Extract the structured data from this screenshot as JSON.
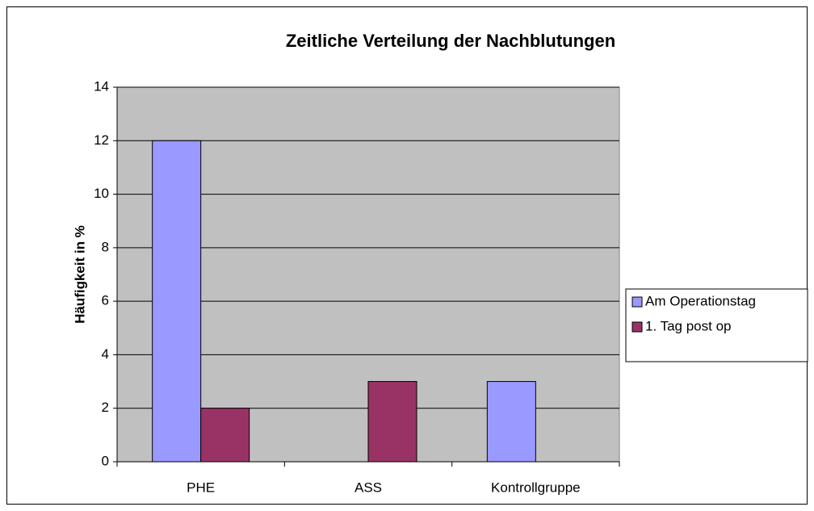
{
  "chart_data": {
    "type": "bar",
    "title": "Zeitliche Verteilung der Nachblutungen",
    "y_label": "Häufigkeit in %",
    "categories": [
      "PHE",
      "ASS",
      "Kontrollgruppe"
    ],
    "series": [
      {
        "name": "Am Operationstag",
        "color": "#9999ff",
        "values": [
          12,
          0,
          3
        ]
      },
      {
        "name": "1. Tag post op",
        "color": "#993366",
        "values": [
          2,
          3,
          0
        ]
      }
    ],
    "ylim": [
      0,
      14
    ],
    "yticks": [
      0,
      2,
      4,
      6,
      8,
      10,
      12,
      14
    ],
    "grid": true,
    "legend": "right"
  }
}
